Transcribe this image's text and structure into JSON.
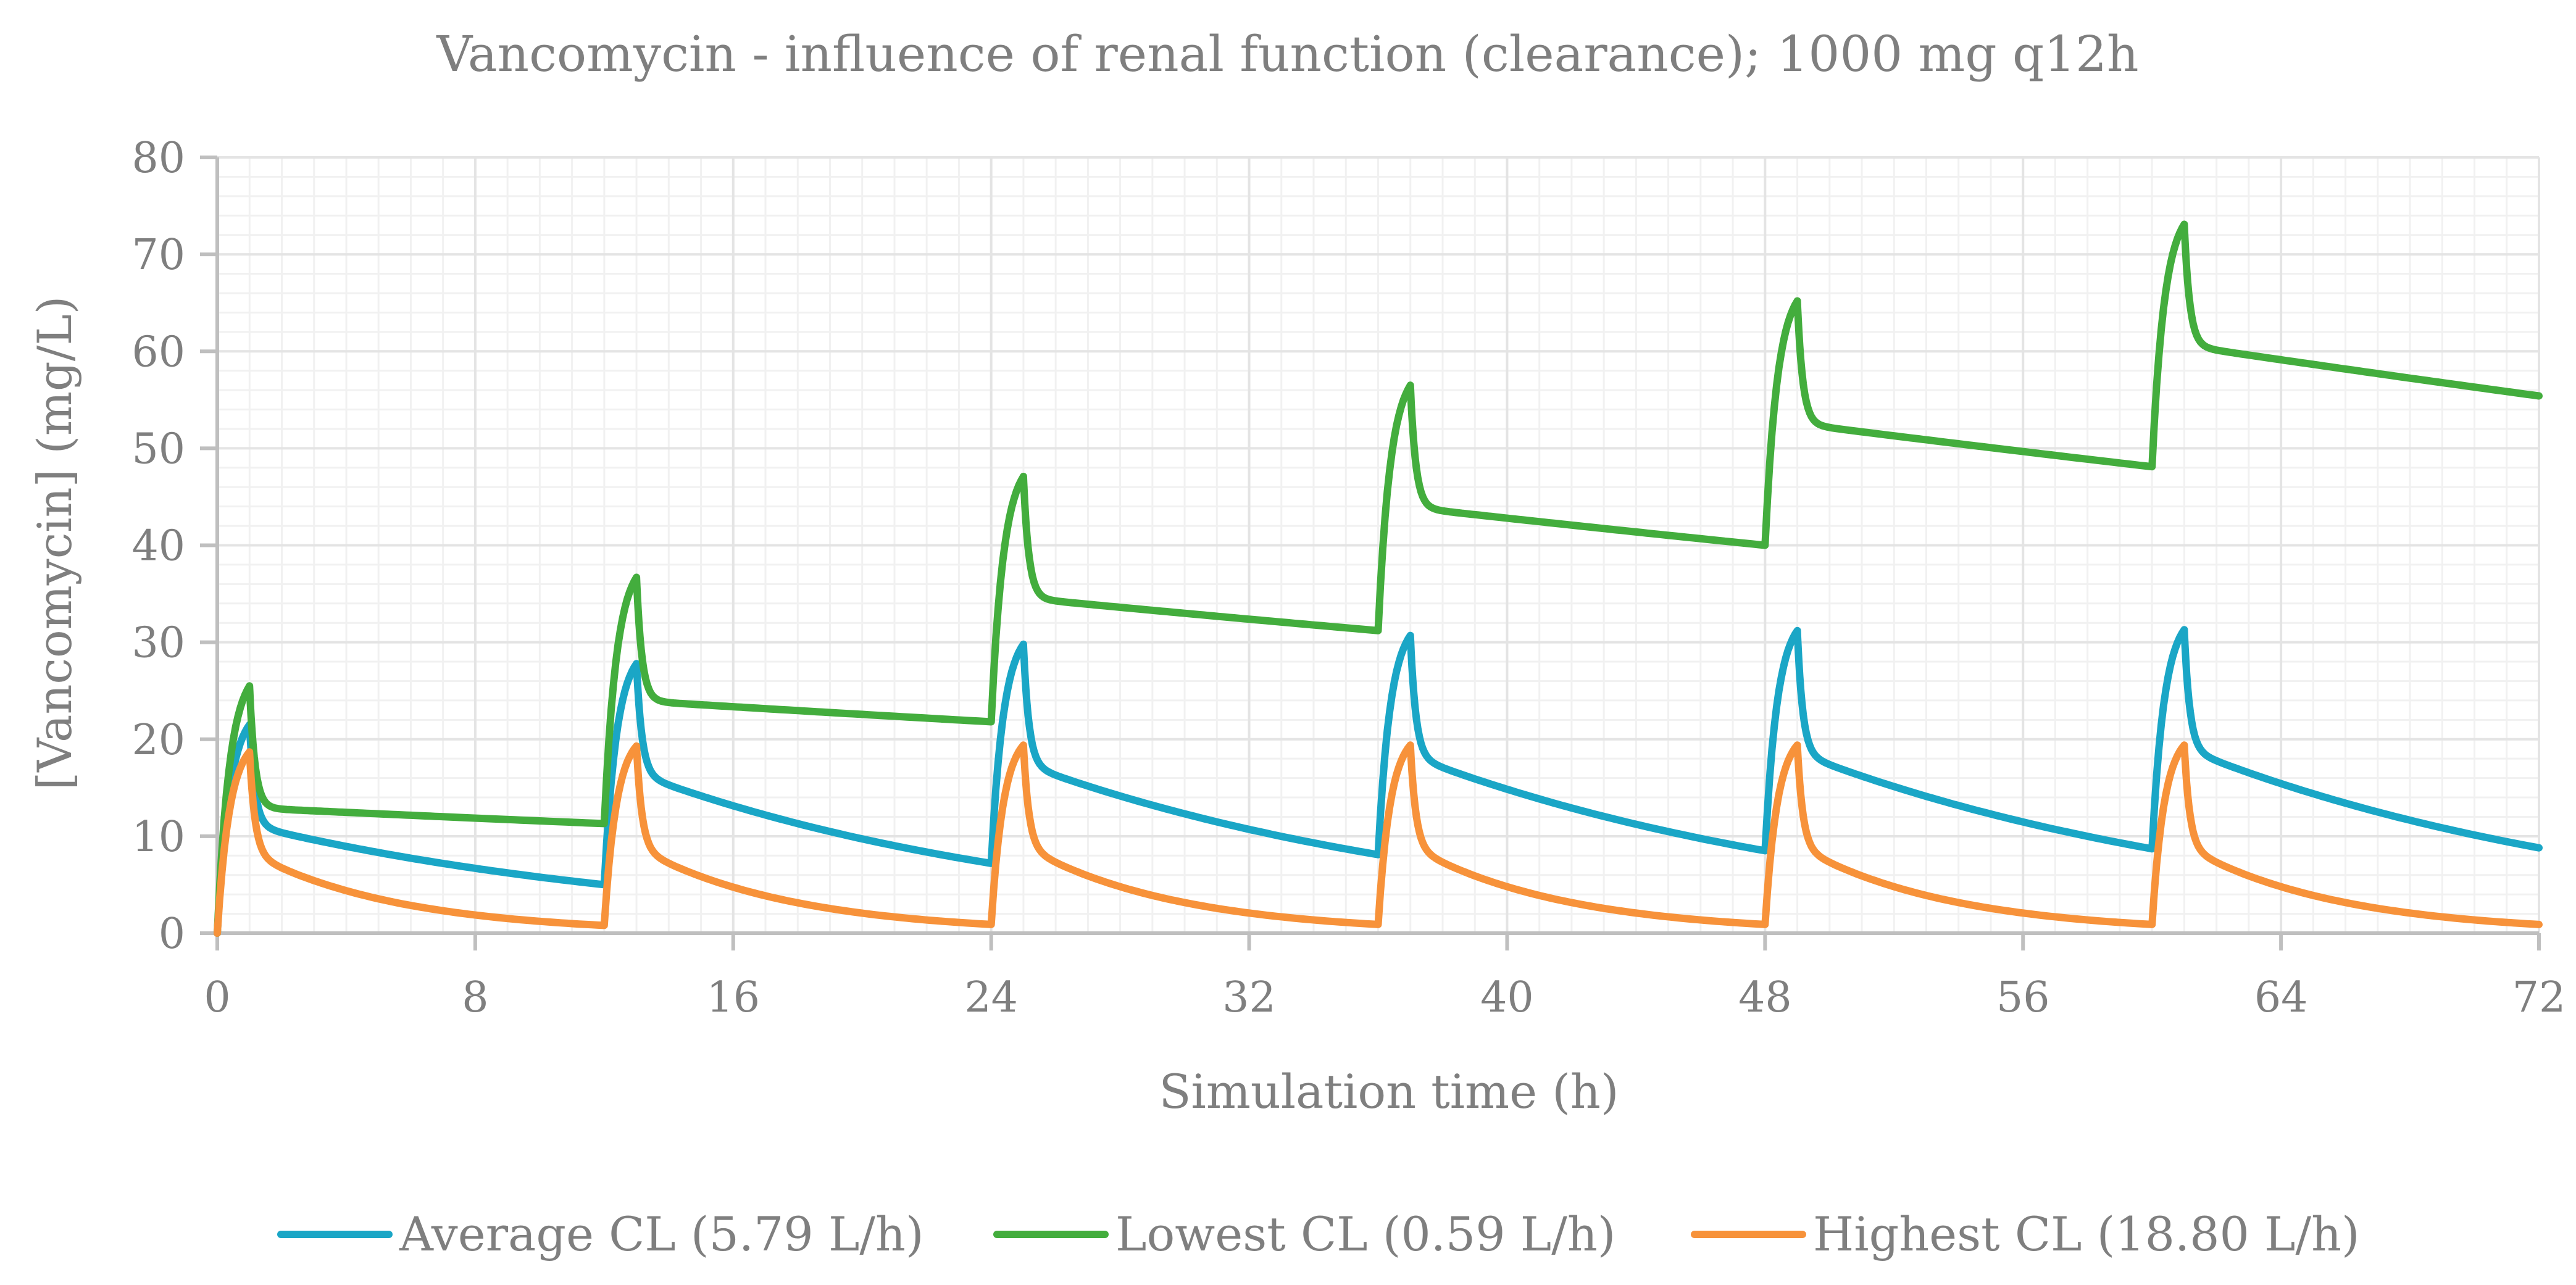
{
  "chart_data": {
    "type": "line",
    "title": "Vancomycin - influence of renal function (clearance); 1000 mg q12h",
    "xlabel": "Simulation time (h)",
    "ylabel": "[Vancomycin] (mg/L)",
    "xlim": [
      0,
      72
    ],
    "ylim": [
      0,
      80
    ],
    "xticks": [
      0,
      8,
      16,
      24,
      32,
      40,
      48,
      56,
      64,
      72
    ],
    "yticks": [
      0,
      10,
      20,
      30,
      40,
      50,
      60,
      70,
      80
    ],
    "grid": true,
    "legend_position": "bottom",
    "dose_interval_h": 12,
    "infusion_duration_h": 1,
    "series": [
      {
        "name": "Average CL (5.79 L/h)",
        "color": "#1aa6c6",
        "troughs": [
          0,
          5.0,
          7.2,
          8.1,
          8.5,
          8.7
        ],
        "peaks": [
          21.5,
          27.8,
          29.8,
          30.7,
          31.2,
          31.3
        ],
        "after_distribution": [
          10.5,
          15.5,
          16.5,
          17.3,
          17.6,
          18.0
        ],
        "end_value": 8.8
      },
      {
        "name": "Lowest CL (0.59 L/h)",
        "color": "#43ad3d",
        "troughs": [
          0,
          11.3,
          21.8,
          31.2,
          40.0,
          48.1
        ],
        "peaks": [
          25.5,
          36.7,
          47.1,
          56.5,
          65.2,
          73.1
        ],
        "after_distribution": [
          12.8,
          23.8,
          34.3,
          43.6,
          52.2,
          60.2
        ],
        "end_value": 55.4
      },
      {
        "name": "Highest CL (18.80 L/h)",
        "color": "#f7923a",
        "troughs": [
          0,
          0.8,
          0.9,
          0.9,
          0.9,
          0.9
        ],
        "peaks": [
          18.7,
          19.3,
          19.4,
          19.4,
          19.4,
          19.4
        ],
        "after_distribution": [
          7.0,
          7.5,
          7.6,
          7.6,
          7.6,
          7.6
        ],
        "end_value": 0.9
      }
    ]
  }
}
